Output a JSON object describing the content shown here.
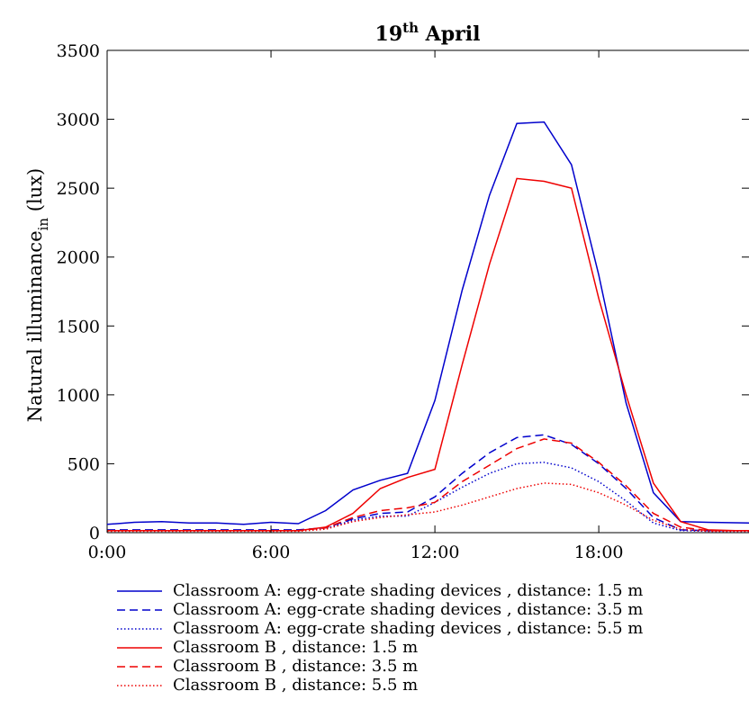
{
  "chart_data": {
    "type": "line",
    "title": "19",
    "title_superscript": "th",
    "title_suffix": " April",
    "ylabel": "Natural illuminance",
    "ylabel_subscript": "in",
    "ylabel_unit": " (lux)",
    "xlabel": "",
    "x_ticks": [
      "0:00",
      "6:00",
      "12:00",
      "18:00"
    ],
    "y_ticks": [
      "0",
      "500",
      "1000",
      "1500",
      "2000",
      "2500",
      "3000",
      "3500"
    ],
    "xlim": [
      0,
      23.5
    ],
    "ylim": [
      0,
      3500
    ],
    "grid": false,
    "legend_position": "below",
    "x": [
      0,
      1,
      2,
      3,
      4,
      5,
      6,
      7,
      8,
      9,
      10,
      11,
      12,
      13,
      14,
      15,
      16,
      17,
      18,
      19,
      20,
      21,
      22,
      23,
      23.5
    ],
    "series": [
      {
        "name": "Classroom A: egg-crate shading devices , distance: 1.5 m",
        "color": "#0000cc",
        "dash": "solid",
        "values": [
          60,
          75,
          80,
          70,
          70,
          60,
          75,
          65,
          160,
          310,
          380,
          430,
          960,
          1760,
          2450,
          2970,
          2980,
          2670,
          1870,
          940,
          290,
          80,
          75,
          72,
          70
        ]
      },
      {
        "name": "Classroom A: egg-crate shading devices , distance: 3.5 m",
        "color": "#0000cc",
        "dash": "dashed",
        "values": [
          20,
          20,
          20,
          20,
          20,
          20,
          20,
          20,
          35,
          100,
          140,
          150,
          260,
          430,
          580,
          690,
          710,
          640,
          500,
          320,
          110,
          20,
          15,
          15,
          15
        ]
      },
      {
        "name": "Classroom A: egg-crate shading devices , distance: 5.5 m",
        "color": "#0000cc",
        "dash": "dotted",
        "values": [
          15,
          15,
          15,
          15,
          15,
          15,
          15,
          15,
          30,
          90,
          120,
          120,
          220,
          330,
          430,
          500,
          510,
          470,
          370,
          230,
          70,
          15,
          10,
          10,
          10
        ]
      },
      {
        "name": "Classroom B , distance: 1.5 m",
        "color": "#ee0000",
        "dash": "solid",
        "values": [
          15,
          15,
          15,
          15,
          15,
          15,
          15,
          15,
          40,
          140,
          320,
          400,
          460,
          1220,
          1950,
          2570,
          2550,
          2500,
          1700,
          1000,
          360,
          80,
          20,
          15,
          15
        ]
      },
      {
        "name": "Classroom B , distance: 3.5 m",
        "color": "#ee0000",
        "dash": "dashed",
        "values": [
          15,
          15,
          15,
          15,
          15,
          15,
          15,
          15,
          35,
          110,
          160,
          180,
          220,
          370,
          490,
          610,
          680,
          650,
          510,
          340,
          140,
          40,
          15,
          15,
          15
        ]
      },
      {
        "name": "Classroom B , distance: 5.5 m",
        "color": "#ee0000",
        "dash": "dotted",
        "values": [
          10,
          10,
          10,
          10,
          10,
          10,
          10,
          10,
          25,
          80,
          110,
          130,
          150,
          200,
          260,
          320,
          360,
          350,
          290,
          200,
          90,
          25,
          10,
          10,
          10
        ]
      }
    ]
  }
}
